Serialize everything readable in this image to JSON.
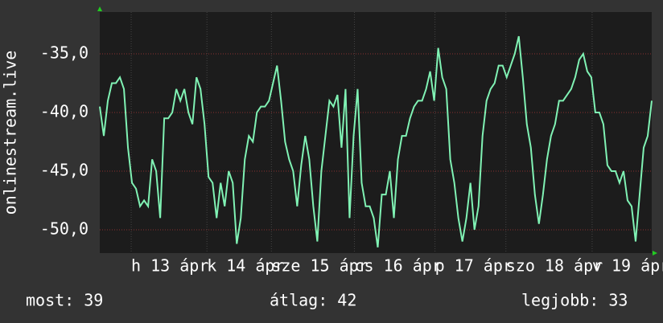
{
  "chart_data": {
    "type": "line",
    "ylabel": "onlinestream.live",
    "series": [
      {
        "name": "onlinestream.live",
        "color": "#80f2b4",
        "values": [
          -39.5,
          -42,
          -39,
          -37.5,
          -37.5,
          -37,
          -38,
          -43,
          -46,
          -46.5,
          -48,
          -47.5,
          -48,
          -44,
          -45,
          -49,
          -40.5,
          -40.5,
          -40,
          -38,
          -39,
          -38,
          -40,
          -41,
          -37,
          -38,
          -41,
          -45.5,
          -46,
          -49,
          -46,
          -48,
          -45,
          -46,
          -51.2,
          -49,
          -44,
          -42,
          -42.5,
          -40,
          -39.5,
          -39.5,
          -39,
          -37.5,
          -36,
          -39,
          -42.5,
          -44,
          -45,
          -48,
          -44.5,
          -42,
          -44,
          -48,
          -51,
          -45,
          -42,
          -39,
          -39.5,
          -38.5,
          -43,
          -38,
          -49,
          -42,
          -38,
          -46,
          -48,
          -48,
          -49,
          -51.5,
          -47,
          -47,
          -45,
          -49,
          -44,
          -42,
          -42,
          -40.5,
          -39.5,
          -39,
          -39,
          -38,
          -36.5,
          -39,
          -34.5,
          -37,
          -38,
          -44,
          -46,
          -49,
          -51,
          -49,
          -46,
          -50,
          -48,
          -42,
          -39,
          -38,
          -37.5,
          -36,
          -36,
          -37,
          -36,
          -35,
          -33.5,
          -37,
          -41,
          -43,
          -47,
          -49.5,
          -47,
          -44,
          -42,
          -41,
          -39,
          -39,
          -38.5,
          -38,
          -37,
          -35.5,
          -35,
          -36.5,
          -37,
          -40,
          -40,
          -41,
          -44.5,
          -45,
          -45,
          -46,
          -45,
          -47.5,
          -48,
          -51,
          -47,
          -43,
          -42,
          -39
        ]
      }
    ],
    "xlim": [
      0,
      137
    ],
    "ylim": [
      -51.99,
      -31.44
    ],
    "yticks": [
      {
        "value": -50,
        "label": "-50,0"
      },
      {
        "value": -45,
        "label": "-45,0"
      },
      {
        "value": -40,
        "label": "-40,0"
      },
      {
        "value": -35,
        "label": "-35,0"
      }
    ],
    "xticks": [
      {
        "value": 7.8,
        "label": "h 13 ápr"
      },
      {
        "value": 26.6,
        "label": "k 14 ápr"
      },
      {
        "value": 42.6,
        "label": "sze 15 ápr"
      },
      {
        "value": 63.2,
        "label": "cs 16 ápr"
      },
      {
        "value": 83.2,
        "label": "p 17 ápr"
      },
      {
        "value": 100.8,
        "label": "szo 18 ápr"
      },
      {
        "value": 122.2,
        "label": "v 19 ápr"
      }
    ],
    "grid": true
  },
  "footer": [
    "most: 39",
    "átlag: 42",
    "legjobb: 33"
  ]
}
